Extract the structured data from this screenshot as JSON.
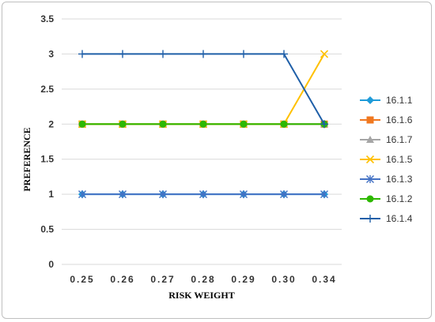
{
  "chart_data": {
    "type": "line",
    "x": [
      "0.25",
      "0.26",
      "0.27",
      "0.28",
      "0.29",
      "0.30",
      "0.34"
    ],
    "xlabel": "RISK WEIGHT",
    "ylabel": "PREFERENCE",
    "ylim": [
      0,
      3.5
    ],
    "yticks": [
      "0",
      "0.5",
      "1",
      "1.5",
      "2",
      "2.5",
      "3",
      "3.5"
    ],
    "grid": "horizontal",
    "legend_position": "right",
    "series": [
      {
        "name": "16.1.1",
        "values": [
          1,
          1,
          1,
          1,
          1,
          1,
          1
        ],
        "color": "#1f9bd9",
        "marker": "diamond"
      },
      {
        "name": "16.1.6",
        "values": [
          2,
          2,
          2,
          2,
          2,
          2,
          2
        ],
        "color": "#f07820",
        "marker": "square"
      },
      {
        "name": "16.1.7",
        "values": [
          2,
          2,
          2,
          2,
          2,
          2,
          2
        ],
        "color": "#a5a5a5",
        "marker": "triangle"
      },
      {
        "name": "16.1.5",
        "values": [
          2,
          2,
          2,
          2,
          2,
          2,
          3
        ],
        "color": "#ffc000",
        "marker": "x"
      },
      {
        "name": "16.1.3",
        "values": [
          1,
          1,
          1,
          1,
          1,
          1,
          1
        ],
        "color": "#4472c4",
        "marker": "star"
      },
      {
        "name": "16.1.2",
        "values": [
          2,
          2,
          2,
          2,
          2,
          2,
          2
        ],
        "color": "#2db800",
        "marker": "circle"
      },
      {
        "name": "16.1.4",
        "values": [
          3,
          3,
          3,
          3,
          3,
          3,
          2
        ],
        "color": "#1f5fa8",
        "marker": "plus"
      }
    ]
  }
}
